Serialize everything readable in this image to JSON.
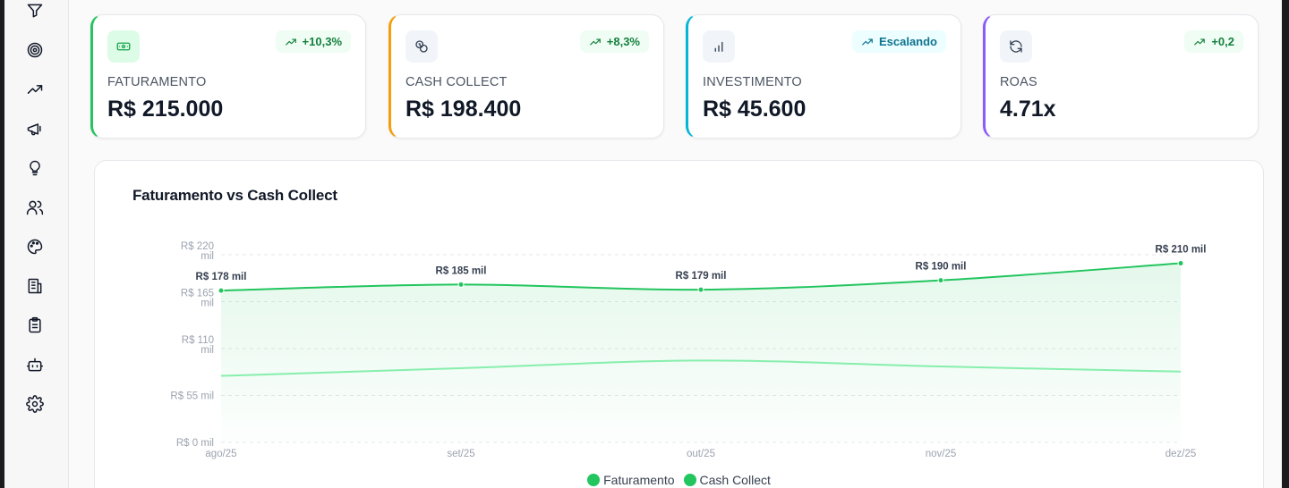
{
  "sidebar": {
    "icons": [
      "filter-icon",
      "target-icon",
      "trending-up-icon",
      "megaphone-icon",
      "lightbulb-icon",
      "users-icon",
      "palette-icon",
      "building-icon",
      "clipboard-icon",
      "bot-icon",
      "settings-icon"
    ]
  },
  "kpis": [
    {
      "label": "FATURAMENTO",
      "value": "R$ 215.000",
      "badge": "+10,3%",
      "icon": "banknote-icon",
      "accent": "#22c55e",
      "icon_bg": "#dcfce7",
      "icon_color": "#16a34a",
      "badge_bg": "#f0fdf4",
      "badge_color": "#15803d"
    },
    {
      "label": "CASH COLLECT",
      "value": "R$ 198.400",
      "badge": "+8,3%",
      "icon": "coins-icon",
      "accent": "#f59e0b",
      "icon_bg": "#f1f5f9",
      "icon_color": "#334155",
      "badge_bg": "#f0fdf4",
      "badge_color": "#15803d"
    },
    {
      "label": "INVESTIMENTO",
      "value": "R$ 45.600",
      "badge": "Escalando",
      "icon": "bar-chart-icon",
      "accent": "#06b6d4",
      "icon_bg": "#f1f5f9",
      "icon_color": "#334155",
      "badge_bg": "#ecfeff",
      "badge_color": "#0e7490"
    },
    {
      "label": "ROAS",
      "value": "4.71x",
      "badge": "+0,2",
      "icon": "refresh-icon",
      "accent": "#8b5cf6",
      "icon_bg": "#f1f5f9",
      "icon_color": "#334155",
      "badge_bg": "#f0fdf4",
      "badge_color": "#15803d"
    }
  ],
  "chart": {
    "title": "Faturamento vs Cash Collect",
    "legend": [
      "Faturamento",
      "Cash Collect"
    ]
  },
  "chart_data": {
    "type": "area",
    "categories": [
      "ago/25",
      "set/25",
      "out/25",
      "nov/25",
      "dez/25"
    ],
    "series": [
      {
        "name": "Faturamento",
        "values": [
          178000,
          185000,
          179000,
          190000,
          210000
        ],
        "color": "#22c55e",
        "labels": [
          "R$ 178 mil",
          "R$ 185 mil",
          "R$ 179 mil",
          "R$ 190 mil",
          "R$ 210 mil"
        ]
      },
      {
        "name": "Cash Collect",
        "values": [
          78000,
          87000,
          96000,
          89000,
          83000
        ],
        "color": "#86efac"
      }
    ],
    "yticks": [
      {
        "value": 0,
        "label": [
          "R$ 0 mil"
        ]
      },
      {
        "value": 55000,
        "label": [
          "R$ 55 mil"
        ]
      },
      {
        "value": 110000,
        "label": [
          "R$ 110",
          "mil"
        ]
      },
      {
        "value": 165000,
        "label": [
          "R$ 165",
          "mil"
        ]
      },
      {
        "value": 220000,
        "label": [
          "R$ 220",
          "mil"
        ]
      }
    ],
    "ylim": [
      0,
      220000
    ],
    "grid": true,
    "legend_position": "bottom"
  }
}
